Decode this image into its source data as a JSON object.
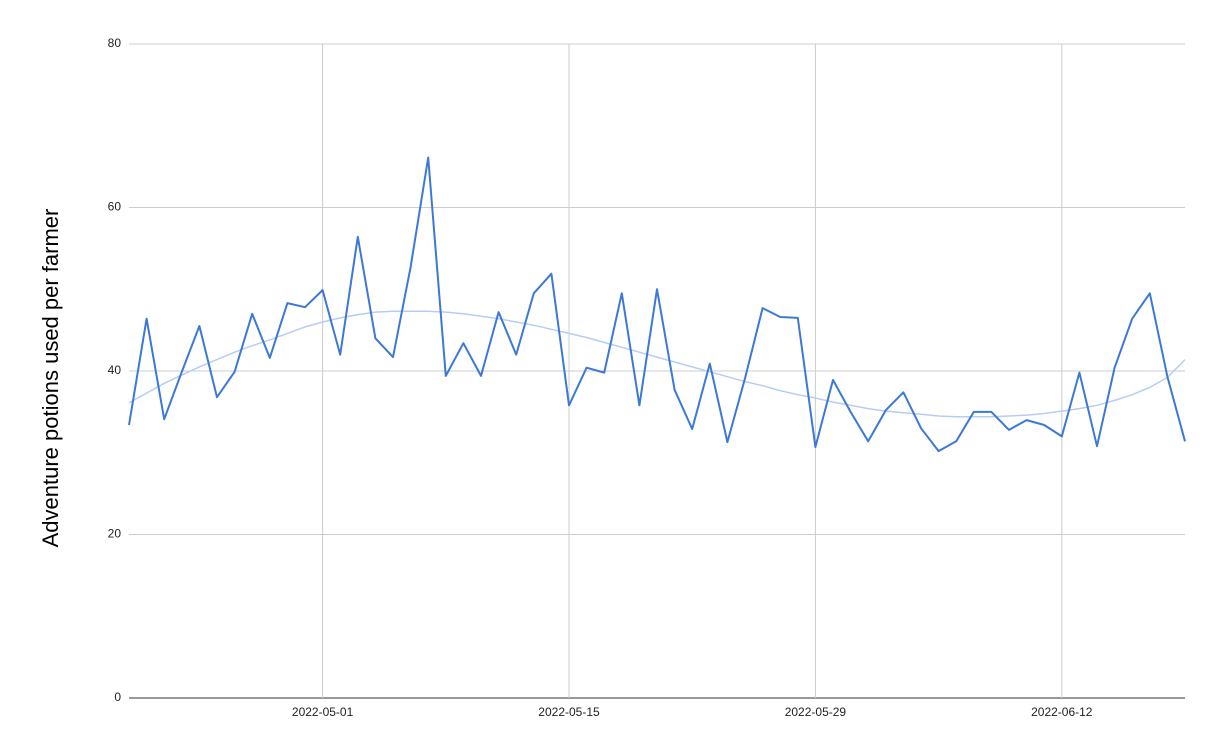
{
  "chart_data": {
    "type": "line",
    "y_label": "Adventure potions used per farmer",
    "x": [
      "2022-04-20",
      "2022-04-21",
      "2022-04-22",
      "2022-04-23",
      "2022-04-24",
      "2022-04-25",
      "2022-04-26",
      "2022-04-27",
      "2022-04-28",
      "2022-04-29",
      "2022-04-30",
      "2022-05-01",
      "2022-05-02",
      "2022-05-03",
      "2022-05-04",
      "2022-05-05",
      "2022-05-06",
      "2022-05-07",
      "2022-05-08",
      "2022-05-09",
      "2022-05-10",
      "2022-05-11",
      "2022-05-12",
      "2022-05-13",
      "2022-05-14",
      "2022-05-15",
      "2022-05-16",
      "2022-05-17",
      "2022-05-18",
      "2022-05-19",
      "2022-05-20",
      "2022-05-21",
      "2022-05-22",
      "2022-05-23",
      "2022-05-24",
      "2022-05-25",
      "2022-05-26",
      "2022-05-27",
      "2022-05-28",
      "2022-05-29",
      "2022-05-30",
      "2022-05-31",
      "2022-06-01",
      "2022-06-02",
      "2022-06-03",
      "2022-06-04",
      "2022-06-05",
      "2022-06-06",
      "2022-06-07",
      "2022-06-08",
      "2022-06-09",
      "2022-06-10",
      "2022-06-11",
      "2022-06-12",
      "2022-06-13",
      "2022-06-14",
      "2022-06-15",
      "2022-06-16",
      "2022-06-17",
      "2022-06-18",
      "2022-06-19"
    ],
    "series": [
      {
        "name": "Adventure potions used per farmer",
        "color": "#3c78d8",
        "width": 2,
        "values": [
          33.4,
          46.4,
          34.1,
          39.9,
          45.5,
          36.8,
          39.9,
          47.0,
          41.6,
          48.3,
          47.8,
          49.9,
          42.0,
          56.4,
          44.0,
          41.7,
          52.7,
          66.1,
          39.4,
          43.4,
          39.4,
          47.2,
          42.0,
          49.5,
          51.9,
          35.8,
          40.4,
          39.8,
          49.5,
          35.8,
          50.0,
          37.7,
          32.9,
          40.9,
          31.3,
          39.1,
          47.7,
          46.6,
          46.5,
          30.7,
          38.9,
          35.0,
          31.4,
          35.2,
          37.4,
          33.0,
          30.2,
          31.4,
          35.0,
          35.0,
          32.8,
          34.0,
          33.4,
          32.0,
          39.8,
          30.8,
          40.4,
          46.4,
          49.5,
          39.3,
          31.4
        ]
      },
      {
        "name": "Trendline",
        "color": "#b6cdf3",
        "width": 1.5,
        "values": [
          36.1,
          37.3,
          38.5,
          39.5,
          40.5,
          41.4,
          42.3,
          43.1,
          43.8,
          44.6,
          45.4,
          46.0,
          46.5,
          46.9,
          47.2,
          47.3,
          47.3,
          47.3,
          47.2,
          47.0,
          46.7,
          46.4,
          46.0,
          45.6,
          45.1,
          44.6,
          44.1,
          43.5,
          42.9,
          42.3,
          41.7,
          41.1,
          40.5,
          39.9,
          39.3,
          38.7,
          38.2,
          37.6,
          37.1,
          36.7,
          36.2,
          35.8,
          35.4,
          35.1,
          34.9,
          34.7,
          34.5,
          34.4,
          34.4,
          34.4,
          34.5,
          34.6,
          34.8,
          35.1,
          35.4,
          35.8,
          36.4,
          37.1,
          38.0,
          39.2,
          41.4
        ]
      }
    ],
    "xlim": [
      "2022-04-20",
      "2022-06-19"
    ],
    "xticks": [
      "2022-05-01",
      "2022-05-15",
      "2022-05-29",
      "2022-06-12"
    ],
    "ylim": [
      0,
      80
    ],
    "yticks": [
      0,
      20,
      40,
      60,
      80
    ],
    "grid": true
  }
}
